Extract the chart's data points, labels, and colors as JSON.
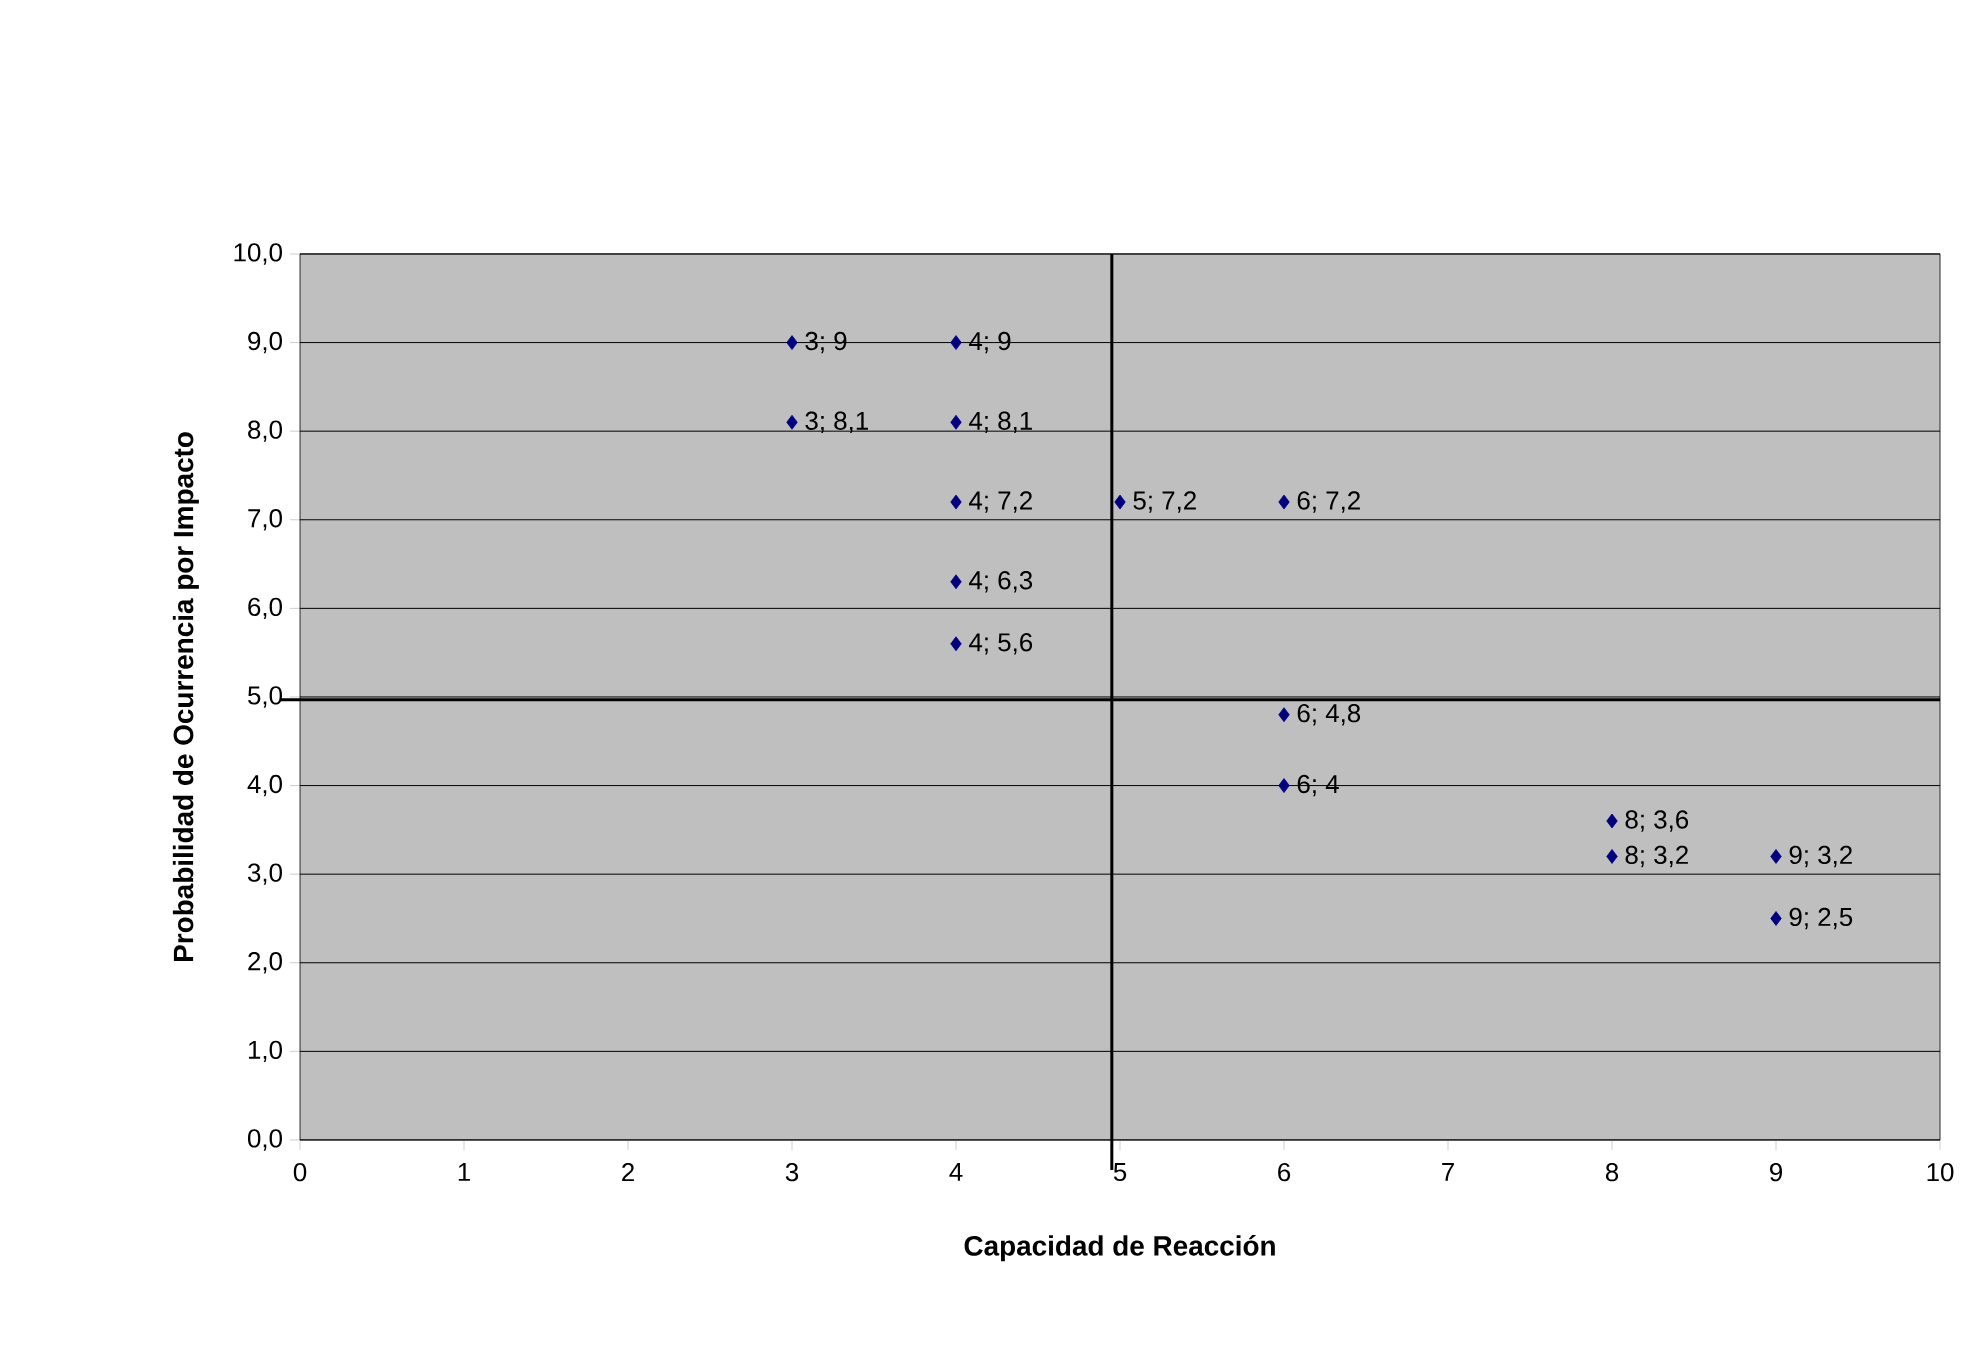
{
  "chart_data": {
    "type": "scatter",
    "xlabel": "Capacidad de Reacción",
    "ylabel": "Probabilidad de Ocurrencia por Impacto",
    "x": [
      3,
      4,
      3,
      4,
      4,
      5,
      6,
      4,
      4,
      6,
      6,
      8,
      8,
      9,
      9
    ],
    "values": [
      9,
      9,
      8.1,
      8.1,
      7.2,
      7.2,
      7.2,
      6.3,
      5.6,
      4.8,
      4,
      3.6,
      3.2,
      3.2,
      2.5
    ],
    "value_labels": [
      "3; 9",
      "4; 9",
      "3; 8,1",
      "4; 8,1",
      "4; 7,2",
      "5; 7,2",
      "6; 7,2",
      "4; 6,3",
      "4; 5,6",
      "6; 4,8",
      "6; 4",
      "8; 3,6",
      "8; 3,2",
      "9; 3,2",
      "9; 2,5"
    ],
    "color": "#000080",
    "marker": "diamond",
    "grid": "y",
    "xlim": [
      0,
      10
    ],
    "xticks": [
      0,
      1,
      2,
      3,
      4,
      5,
      6,
      7,
      8,
      9,
      10
    ],
    "ylim": [
      0,
      10
    ],
    "yticks": [
      {
        "value": 0,
        "label": "0,0"
      },
      {
        "value": 1,
        "label": "1,0"
      },
      {
        "value": 2,
        "label": "2,0"
      },
      {
        "value": 3,
        "label": "3,0"
      },
      {
        "value": 4,
        "label": "4,0"
      },
      {
        "value": 5,
        "label": "5,0"
      },
      {
        "value": 6,
        "label": "6,0"
      },
      {
        "value": 7,
        "label": "7,0"
      },
      {
        "value": 8,
        "label": "8,0"
      },
      {
        "value": 9,
        "label": "9,0"
      },
      {
        "value": 10,
        "label": "10,0"
      }
    ],
    "ref_lines": [
      {
        "axis": "x",
        "value": 4.95,
        "color": "#000000"
      },
      {
        "axis": "y",
        "value": 4.97,
        "color": "#000000"
      }
    ]
  }
}
